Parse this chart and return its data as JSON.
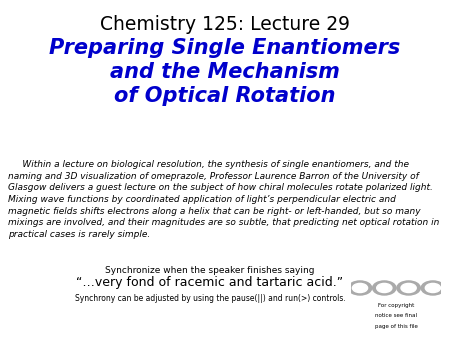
{
  "title": "Chemistry 125: Lecture 29",
  "subtitle_line1": "Preparing Single Enantiomers",
  "subtitle_line2": "and the Mechanism",
  "subtitle_line3": "of Optical Rotation",
  "subtitle_color": "#0000CC",
  "body_lines": [
    "     Within a lecture on biological resolution, the synthesis of single enantiomers, and the",
    "naming and 3D visualization of omeprazole, Professor Laurence Barron of the University of",
    "Glasgow delivers a guest lecture on the subject of how chiral molecules rotate polarized light.",
    "Mixing wave functions by coordinated application of light’s perpendicular electric and",
    "magnetic fields shifts electrons along a helix that can be right- or left-handed, but so many",
    "mixings are involved, and their magnitudes are so subtle, that predicting net optical rotation in",
    "practical cases is rarely simple."
  ],
  "sync_line1": "Synchronize when the speaker finishes saying",
  "sync_line2": "“…very fond of racemic and tartaric acid.”",
  "sync_line3": "Synchrony can be adjusted by using the pause(||) and run(>) controls.",
  "background_color": "#ffffff",
  "title_fontsize": 13.5,
  "subtitle_fontsize": 15,
  "body_fontsize": 6.5,
  "sync1_fontsize": 6.5,
  "sync2_fontsize": 9,
  "sync3_fontsize": 5.5,
  "cc_fontsize": 4.0
}
